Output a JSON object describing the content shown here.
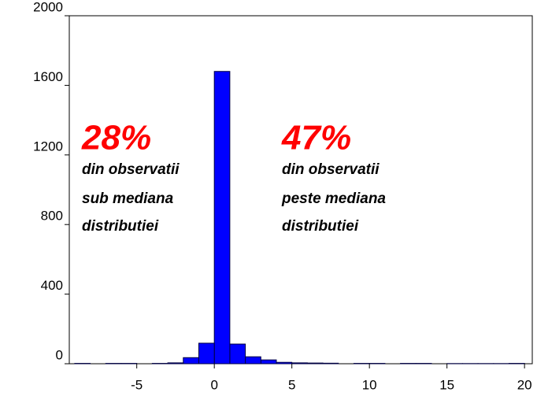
{
  "chart_data": {
    "type": "histogram",
    "bins": [
      -9,
      -8,
      -7,
      -6,
      -5,
      -4,
      -3,
      -2,
      -1,
      0,
      1,
      2,
      3,
      4,
      5,
      6,
      7,
      8,
      9,
      10,
      11,
      12,
      13,
      14,
      15,
      16,
      17,
      18,
      19,
      20
    ],
    "values": [
      2,
      0,
      2,
      2,
      0,
      2,
      5,
      35,
      118,
      1680,
      113,
      40,
      22,
      8,
      5,
      4,
      3,
      0,
      2,
      2,
      0,
      2,
      2,
      0,
      1,
      1,
      1,
      1,
      2
    ],
    "color": "#0000ff",
    "xlim": [
      -9.35,
      20.5
    ],
    "xticks": [
      -5,
      0,
      5,
      10,
      15,
      20
    ],
    "ylim": [
      0,
      2000
    ],
    "yticks": [
      0,
      400,
      800,
      1200,
      1600,
      2000
    ],
    "annotations": [
      {
        "percent": "28%",
        "lines": [
          "din  observatii",
          "sub mediana",
          "distributiei"
        ]
      },
      {
        "percent": "47%",
        "lines": [
          "din observatii",
          "peste mediana",
          "distributiei"
        ]
      }
    ]
  }
}
